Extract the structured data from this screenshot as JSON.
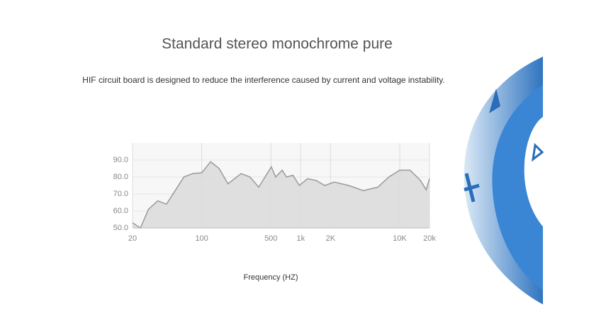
{
  "chart_data": {
    "type": "area",
    "title": "Standard stereo monochrome pure",
    "subtitle": "HIF circuit board is designed to reduce the interference caused by current and voltage instability.",
    "x_label": "Frequency (HZ)",
    "x": [
      20,
      24,
      29,
      36,
      44,
      54,
      66,
      81,
      100,
      123,
      150,
      184,
      250,
      307,
      376,
      505,
      558,
      650,
      717,
      835,
      970,
      1170,
      1430,
      1750,
      2180,
      3050,
      4280,
      6000,
      7760,
      10000,
      12700,
      16200,
      18500,
      20000
    ],
    "values": [
      53,
      50,
      61,
      66,
      64,
      72,
      80,
      82,
      82.5,
      89,
      85,
      76,
      82,
      80,
      74,
      86,
      80,
      84,
      80,
      81,
      75,
      79,
      78,
      75,
      77,
      75,
      72,
      74,
      80,
      84,
      84,
      78,
      72.5,
      79
    ],
    "xlim": [
      20,
      20000
    ],
    "xlog": true,
    "xticks": [
      20,
      100,
      500,
      {
        "value": 1000,
        "label": "1k"
      },
      {
        "value": 2000,
        "label": "2K"
      },
      {
        "value": 10000,
        "label": "10K"
      },
      {
        "value": 20000,
        "label": "20k"
      }
    ],
    "ylim": [
      50,
      100
    ],
    "yticks": [
      {
        "value": 50,
        "label": "50.0"
      },
      {
        "value": 60,
        "label": "60.0"
      },
      {
        "value": 70,
        "label": "70.0"
      },
      {
        "value": 80,
        "label": "80.0"
      },
      {
        "value": 90,
        "label": "90.0"
      }
    ],
    "grid": true,
    "color": "#dadada",
    "line_color": "#9a9a9a"
  }
}
